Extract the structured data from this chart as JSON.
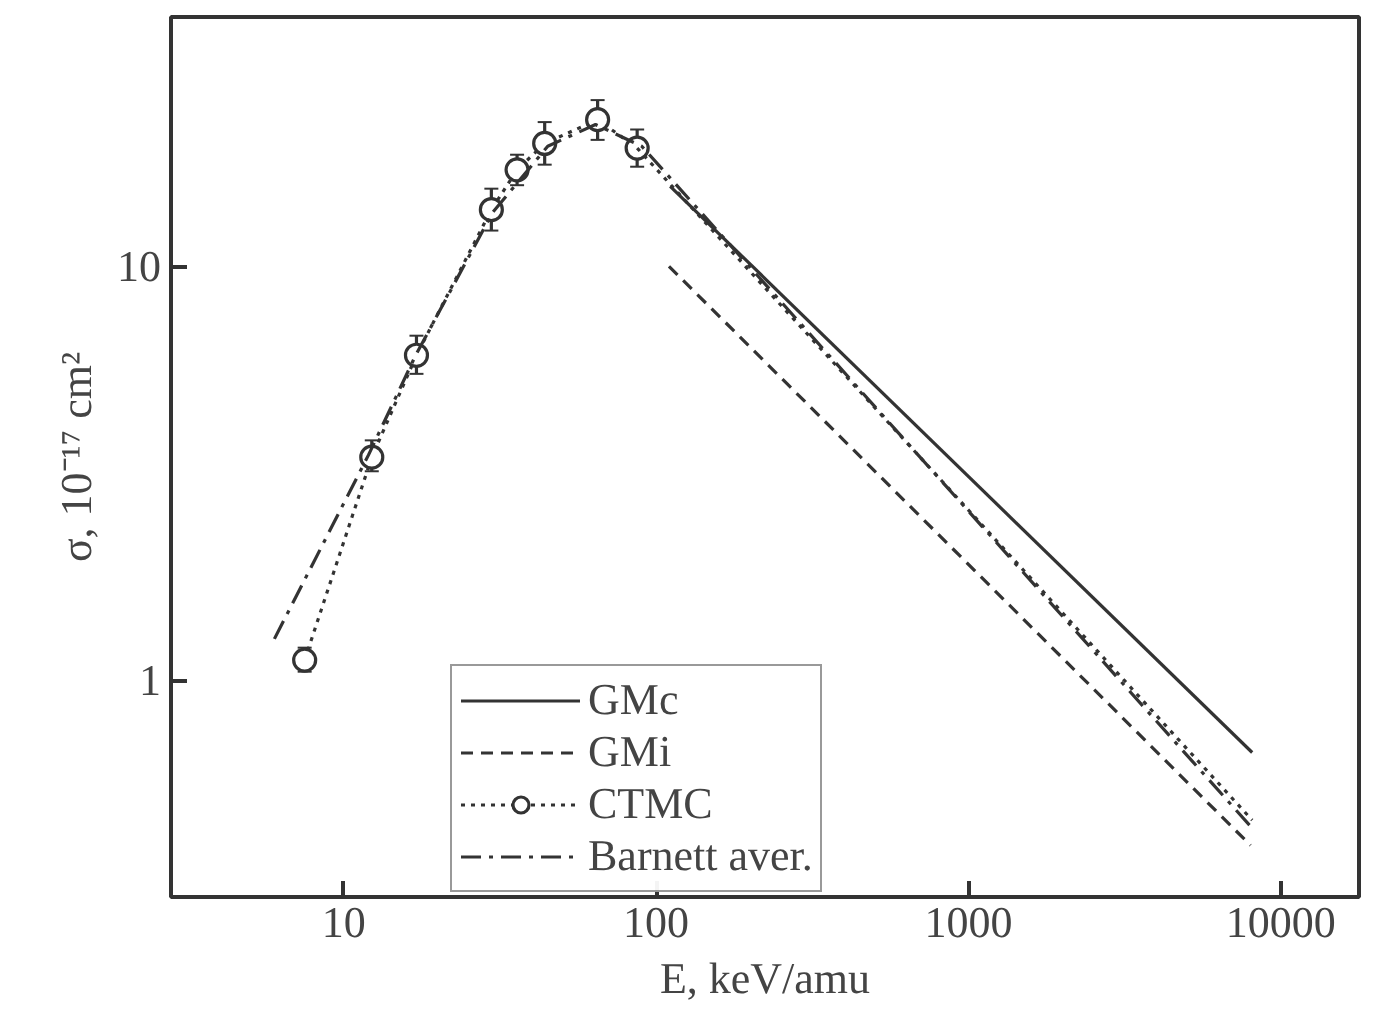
{
  "chart_data": {
    "type": "line",
    "xlabel": "E, keV/amu",
    "ylabel": "σ, 10⁻¹⁷ cm²",
    "log": "xy",
    "xlim": [
      2.8,
      17800
    ],
    "ylim": [
      0.3,
      40
    ],
    "xticks": [
      10,
      100,
      1000,
      10000
    ],
    "yticks": [
      1,
      10
    ],
    "grid": false,
    "legend": "bottom",
    "series": [
      {
        "name": "GMc",
        "color": "#333333",
        "line_style": "solid",
        "marker": "none",
        "x": [
          111,
          8100
        ],
        "values": [
          15.6,
          0.67
        ]
      },
      {
        "name": "GMi",
        "color": "#333333",
        "line_style": "dashed",
        "marker": "none",
        "x": [
          110,
          263,
          8000
        ],
        "values": [
          10,
          5.2,
          0.4
        ]
      },
      {
        "name": "CTMC",
        "color": "#333333",
        "line_style": "dotted",
        "marker": "circle",
        "x": [
          7.5,
          12.3,
          17.1,
          29.7,
          35.9,
          44,
          65,
          87
        ],
        "values": [
          1.12,
          3.46,
          6.1,
          13.7,
          17.1,
          19.8,
          22.6,
          19.3
        ],
        "errors": [
          [
            1.05,
            1.2
          ],
          [
            3.2,
            3.8
          ],
          [
            5.5,
            6.8
          ],
          [
            12.2,
            15.4
          ],
          [
            15.7,
            18.6
          ],
          [
            17.6,
            22.3
          ],
          [
            20.2,
            25.2
          ],
          [
            17.4,
            21.4
          ]
        ]
      },
      {
        "color": "#333333",
        "line_style": "dotted",
        "marker": "none",
        "x": [
          87,
          8100
        ],
        "values": [
          19.3,
          0.46
        ]
      },
      {
        "name": "Barnett aver.",
        "color": "#333333",
        "line_style": "dashdot",
        "marker": "none",
        "x": [
          6,
          12,
          17,
          30,
          45,
          64,
          90,
          8100
        ],
        "values": [
          1.26,
          3.5,
          6.1,
          13.5,
          19.5,
          22,
          19.5,
          0.44
        ]
      }
    ]
  }
}
